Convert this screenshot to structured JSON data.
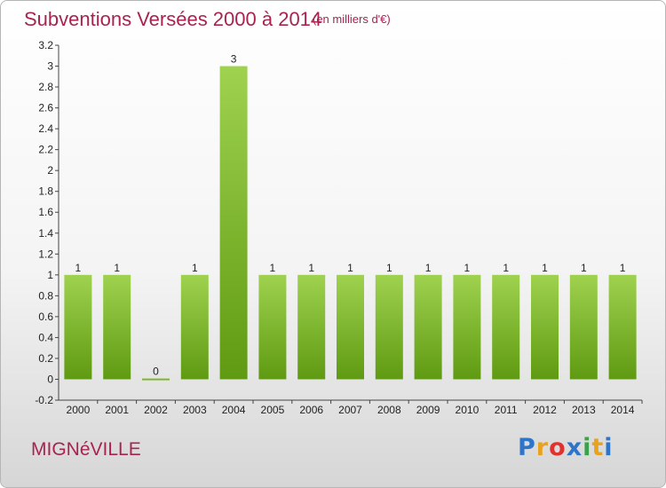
{
  "header": {
    "title": "Subventions Versées 2000 à 2014",
    "unit": "(en milliers d'€)"
  },
  "footer": {
    "town": "MIGNéVILLE",
    "logo": {
      "letters": [
        "P",
        "r",
        "o",
        "x",
        "i",
        "t",
        "i"
      ],
      "colors": [
        "#2e74c9",
        "#e8a21d",
        "#e0322e",
        "#2e74c9",
        "#3aa34a",
        "#e8a21d",
        "#2e74c9"
      ]
    }
  },
  "chart_data": {
    "type": "bar",
    "categories": [
      "2000",
      "2001",
      "2002",
      "2003",
      "2004",
      "2005",
      "2006",
      "2007",
      "2008",
      "2009",
      "2010",
      "2011",
      "2012",
      "2013",
      "2014"
    ],
    "values": [
      1,
      1,
      0,
      1,
      3,
      1,
      1,
      1,
      1,
      1,
      1,
      1,
      1,
      1,
      1
    ],
    "data_labels": [
      "1",
      "1",
      "0",
      "1",
      "3",
      "1",
      "1",
      "1",
      "1",
      "1",
      "1",
      "1",
      "1",
      "1",
      "1"
    ],
    "ylim": [
      -0.2,
      3.2
    ],
    "yticks": [
      -0.2,
      0,
      0.2,
      0.4,
      0.6,
      0.8,
      1,
      1.2,
      1.4,
      1.6,
      1.8,
      2,
      2.2,
      2.4,
      2.6,
      2.8,
      3,
      3.2
    ],
    "ytick_labels": [
      "-0.2",
      "0",
      "0.2",
      "0.4",
      "0.6",
      "0.8",
      "1",
      "1.2",
      "1.4",
      "1.6",
      "1.8",
      "2",
      "2.2",
      "2.4",
      "2.6",
      "2.8",
      "3",
      "3.2"
    ],
    "grid": false,
    "colors": {
      "bar_light": "#9fd24f",
      "bar_dark": "#5f9a12",
      "axis": "#444444",
      "text": "#222222"
    }
  }
}
